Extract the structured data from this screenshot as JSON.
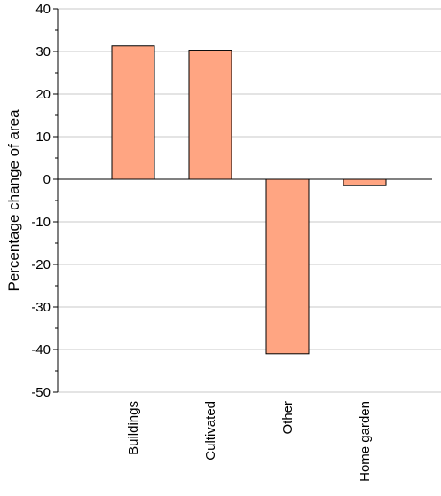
{
  "chart_data": {
    "type": "bar",
    "title": "",
    "xlabel": "",
    "ylabel": "Percentage change of area",
    "categories": [
      "Buildings",
      "Cultivated",
      "Other",
      "Home garden"
    ],
    "values": [
      31.3,
      30.3,
      -41.0,
      -1.5
    ],
    "ylim": [
      -50,
      40
    ],
    "yticks": [
      40,
      30,
      20,
      10,
      0,
      -10,
      -20,
      -30,
      -40,
      -50
    ],
    "grid": "horizontal",
    "legend": "none",
    "colors": {
      "bar_fill": "#ffa582",
      "bar_stroke": "#000000",
      "grid": "#c8c8c8",
      "axis": "#000000"
    }
  }
}
